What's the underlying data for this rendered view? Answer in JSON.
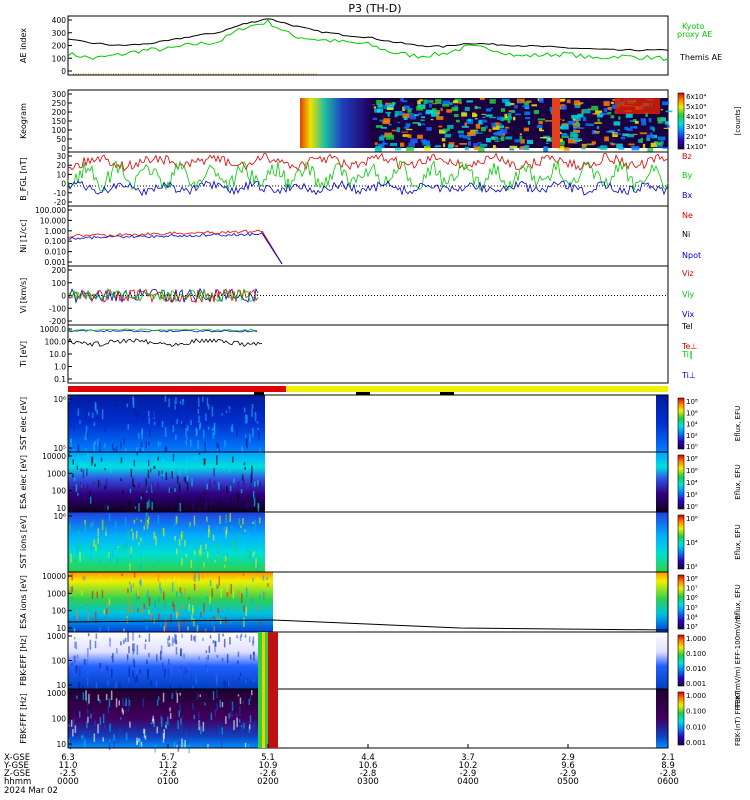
{
  "title": "P3 (TH-D)",
  "date": "2024 Mar 02",
  "colors": {
    "bz": "#e00000",
    "by": "#00cc00",
    "bx": "#0000d0",
    "black": "#000000",
    "green": "#00cc00"
  },
  "chart_data": [
    {
      "type": "line",
      "panel": "ae",
      "ylabel": "AE index",
      "ylim": [
        -100,
        400
      ],
      "yticks": [
        "400",
        "300",
        "200",
        "100",
        "0"
      ],
      "series": [
        {
          "name": "Kyoto proxy AE",
          "color": "#00cc00",
          "x": [
            0,
            0.25,
            0.5,
            0.75,
            1.0,
            1.25,
            1.5,
            1.75,
            2.0,
            2.25,
            2.5,
            2.75,
            3.0,
            3.25,
            3.5,
            3.75,
            4.0,
            4.25,
            4.5,
            4.75,
            5.0,
            5.25,
            5.5,
            5.75,
            6.0
          ],
          "values": [
            80,
            40,
            70,
            110,
            120,
            160,
            180,
            300,
            350,
            230,
            200,
            180,
            160,
            90,
            60,
            80,
            140,
            120,
            60,
            70,
            80,
            40,
            60,
            50,
            40
          ]
        },
        {
          "name": "Themis AE",
          "color": "#000000",
          "x": [
            0,
            0.25,
            0.5,
            0.75,
            1.0,
            1.25,
            1.5,
            1.75,
            2.0,
            2.25,
            2.5,
            2.75,
            3.0,
            3.25,
            3.5,
            3.75,
            4.0,
            4.25,
            4.5,
            4.75,
            5.0,
            5.25,
            5.5,
            5.75,
            6.0
          ],
          "values": [
            200,
            170,
            150,
            160,
            190,
            230,
            260,
            330,
            380,
            320,
            270,
            240,
            220,
            180,
            150,
            140,
            170,
            160,
            150,
            140,
            130,
            120,
            110,
            110,
            110
          ]
        }
      ]
    },
    {
      "type": "heatmap",
      "panel": "keogram",
      "ylabel": "Keogram",
      "ylim": [
        0,
        300
      ],
      "yticks": [
        "300",
        "250",
        "200",
        "150",
        "100",
        "50",
        "0"
      ],
      "colorbar_ticks": [
        "6x10⁴",
        "5x10⁴",
        "4x10⁴",
        "3x10⁴",
        "2x10⁴",
        "1x10⁴"
      ],
      "colorbar_label": "[counts]"
    },
    {
      "type": "line",
      "panel": "bfgl",
      "ylabel": "B_FGL [nT]",
      "ylim": [
        -20,
        30
      ],
      "yticks": [
        "30",
        "20",
        "10",
        "0",
        "-10",
        "-20"
      ],
      "series": [
        {
          "name": "Bz",
          "color": "#e00000"
        },
        {
          "name": "By",
          "color": "#00cc00"
        },
        {
          "name": "Bx",
          "color": "#0000d0"
        }
      ]
    },
    {
      "type": "line",
      "panel": "ni",
      "ylabel": "Ni [1/cc]",
      "scale": "log",
      "yticks": [
        "100.000",
        "10.000",
        "1.000",
        "0.100",
        "0.010",
        "0.001"
      ],
      "series": [
        {
          "name": "Ne",
          "color": "#e00000"
        },
        {
          "name": "Ni",
          "color": "#000000"
        },
        {
          "name": "Npot",
          "color": "#0000d0"
        }
      ]
    },
    {
      "type": "line",
      "panel": "vi",
      "ylabel": "Vi [km/s]",
      "ylim": [
        -200,
        200
      ],
      "yticks": [
        "200",
        "100",
        "0",
        "-100",
        "-200"
      ],
      "series": [
        {
          "name": "Viz",
          "color": "#e00000"
        },
        {
          "name": "Viy",
          "color": "#00cc00"
        },
        {
          "name": "Vix",
          "color": "#0000d0"
        }
      ]
    },
    {
      "type": "line",
      "panel": "ti",
      "ylabel": "Ti [eV]",
      "scale": "log",
      "yticks": [
        "1000.0",
        "100.0",
        "10.0",
        "1.0",
        "0.1"
      ],
      "series": [
        {
          "name": "Tel",
          "color": "#000000"
        },
        {
          "name": "Te⊥",
          "color": "#e00000"
        },
        {
          "name": "Ti∥",
          "color": "#00cc00"
        },
        {
          "name": "Ti⊥",
          "color": "#0000d0"
        }
      ]
    },
    {
      "type": "heatmap",
      "panel": "sst_e",
      "ylabel": "SST elec [eV]",
      "yticks": [
        "10⁶",
        "10⁵"
      ],
      "colorbar_ticks": [
        "10⁸",
        "10⁶",
        "10⁴",
        "10²",
        "10⁰"
      ],
      "colorbar_label": "Eflux, EFU"
    },
    {
      "type": "heatmap",
      "panel": "esa_e",
      "ylabel": "ESA elec [eV]",
      "yticks": [
        "10000",
        "1000",
        "100",
        "10"
      ],
      "colorbar_ticks": [
        "10⁸",
        "10⁶",
        "10⁴",
        "10²",
        "10⁰"
      ],
      "colorbar_label": "Eflux, EFU"
    },
    {
      "type": "heatmap",
      "panel": "sst_i",
      "ylabel": "SST ions [eV]",
      "yticks": [
        "10⁶"
      ],
      "colorbar_ticks": [
        "10⁶",
        "10⁴",
        "10²"
      ],
      "colorbar_label": "Eflux, EFU"
    },
    {
      "type": "heatmap",
      "panel": "esa_i",
      "ylabel": "ESA ions [eV]",
      "yticks": [
        "10000",
        "1000",
        "100",
        "10"
      ],
      "colorbar_ticks": [
        "10⁸",
        "10⁷",
        "10⁶",
        "10⁵",
        "10⁴",
        "10³"
      ],
      "colorbar_label": "Eflux, EFU"
    },
    {
      "type": "heatmap",
      "panel": "fbk_e",
      "ylabel": "FBK-EFF [Hz]",
      "yticks": [
        "1000",
        "100",
        "10"
      ],
      "colorbar_ticks": [
        "1.000",
        "0.100",
        "0.010",
        "0.001"
      ],
      "colorbar_label": "FBK-(mV/m) EFF-100mV/ml"
    },
    {
      "type": "heatmap",
      "panel": "fbk_b",
      "ylabel": "FBK-FFF [Hz]",
      "yticks": [
        "1000",
        "100",
        "10"
      ],
      "colorbar_ticks": [
        "1.000",
        "0.100",
        "0.010",
        "0.001"
      ],
      "colorbar_label": "FBK-(nT) FFF-nT"
    }
  ],
  "legends": {
    "ae": [
      "Kyoto",
      "proxy AE",
      "Themis AE"
    ],
    "bfgl": [
      "Bz",
      "By",
      "Bx"
    ],
    "ni": [
      "Ne",
      "Ni",
      "Npot"
    ],
    "vi": [
      "Viz",
      "Viy",
      "Vix"
    ],
    "ti": [
      "Tel",
      "Te⊥",
      "Ti∥",
      "Ti⊥"
    ]
  },
  "xaxis": {
    "row_labels": [
      "X-GSE",
      "Y-GSE",
      "Z-GSE",
      "hhmm"
    ],
    "columns": [
      {
        "x": "6.3",
        "y": "11.0",
        "z": "-2.5",
        "t": "0000"
      },
      {
        "x": "5.7",
        "y": "11.2",
        "z": "-2.6",
        "t": "0100"
      },
      {
        "x": "5.1",
        "y": "10.9",
        "z": "-2.6",
        "t": "0200"
      },
      {
        "x": "4.4",
        "y": "10.6",
        "z": "-2.8",
        "t": "0300"
      },
      {
        "x": "3.7",
        "y": "10.2",
        "z": "-2.9",
        "t": "0400"
      },
      {
        "x": "2.9",
        "y": "9.6",
        "z": "-2.9",
        "t": "0500"
      },
      {
        "x": "2.1",
        "y": "8.9",
        "z": "-2.8",
        "t": "0600"
      }
    ]
  }
}
